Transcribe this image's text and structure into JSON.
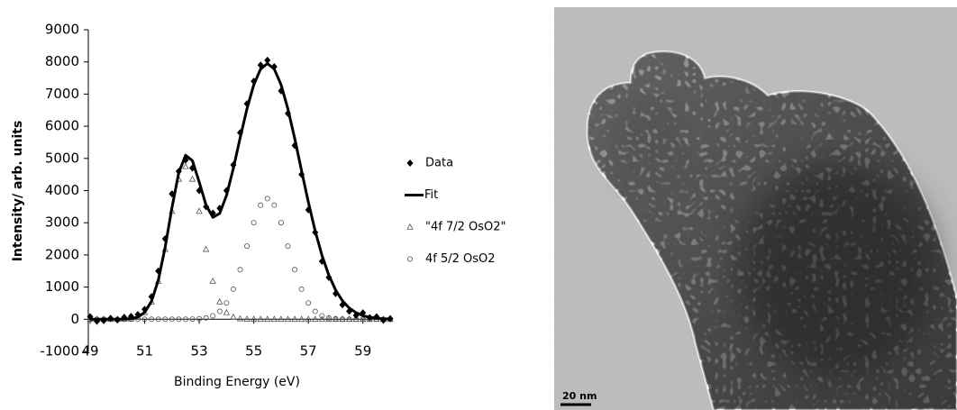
{
  "chart_data": {
    "type": "scatter",
    "xlabel": "Binding Energy (eV)",
    "ylabel": "Intensity/ arb. units",
    "x": [
      49,
      49.25,
      49.5,
      49.75,
      50,
      50.25,
      50.5,
      50.75,
      51,
      51.25,
      51.5,
      51.75,
      52,
      52.25,
      52.5,
      52.75,
      53,
      53.25,
      53.5,
      53.75,
      54,
      54.25,
      54.5,
      54.75,
      55,
      55.25,
      55.5,
      55.75,
      56,
      56.25,
      56.5,
      56.75,
      57,
      57.25,
      57.5,
      57.75,
      58,
      58.25,
      58.5,
      58.75,
      59,
      59.25,
      59.5,
      59.75,
      60
    ],
    "series": [
      {
        "name": "Data",
        "color": "#000000",
        "style": "diamond",
        "values": [
          80,
          -60,
          -40,
          30,
          -20,
          60,
          90,
          150,
          310,
          700,
          1500,
          2500,
          3900,
          4600,
          4950,
          4700,
          4000,
          3500,
          3300,
          3450,
          4000,
          4800,
          5800,
          6700,
          7400,
          7900,
          8050,
          7850,
          7100,
          6400,
          5400,
          4500,
          3400,
          2700,
          1800,
          1300,
          800,
          450,
          250,
          120,
          200,
          50,
          80,
          -30,
          20
        ]
      },
      {
        "name": "Fit",
        "color": "#000000",
        "style": "line",
        "values": [
          0,
          0,
          0,
          0,
          0,
          4,
          18,
          68,
          216,
          557,
          1216,
          2235,
          3470,
          4559,
          5099,
          4931,
          4265,
          3546,
          3168,
          3289,
          3849,
          4688,
          5639,
          6544,
          7290,
          7779,
          7950,
          7779,
          7290,
          6540,
          5621,
          4620,
          3640,
          2747,
          1983,
          1371,
          908,
          575,
          349,
          203,
          113,
          60,
          31,
          15,
          7
        ]
      },
      {
        "name": "\"4f 7/2 OsO2\"",
        "color": "#555555",
        "style": "triangle",
        "values": [
          0,
          0,
          0,
          0,
          0,
          4,
          18,
          68,
          209,
          542,
          1185,
          2175,
          3357,
          4356,
          4750,
          4356,
          3357,
          2175,
          1185,
          542,
          209,
          68,
          18,
          4,
          0,
          0,
          0,
          0,
          0,
          0,
          0,
          0,
          0,
          0,
          0,
          0,
          0,
          0,
          0,
          0,
          0,
          0,
          0,
          0,
          0
        ]
      },
      {
        "name": "4f 5/2 OsO2",
        "color": "#555555",
        "style": "circle",
        "values": [
          0,
          0,
          0,
          0,
          0,
          0,
          0,
          0,
          0,
          0,
          0,
          0,
          0,
          0,
          0,
          5,
          14,
          42,
          107,
          246,
          507,
          935,
          1541,
          2274,
          3003,
          3547,
          3750,
          3547,
          3003,
          2274,
          1541,
          935,
          507,
          246,
          107,
          42,
          14,
          5,
          0,
          0,
          0,
          0,
          0,
          0,
          0
        ]
      }
    ],
    "xlim": [
      49,
      60
    ],
    "xticks": [
      49,
      51,
      53,
      55,
      57,
      59
    ],
    "ylim": [
      -1000,
      9000
    ],
    "yticks": [
      -1000,
      0,
      1000,
      2000,
      3000,
      4000,
      5000,
      6000,
      7000,
      8000,
      9000
    ],
    "grid": false,
    "legend": "right"
  },
  "micrograph": {
    "scale_label": "20 nm"
  }
}
